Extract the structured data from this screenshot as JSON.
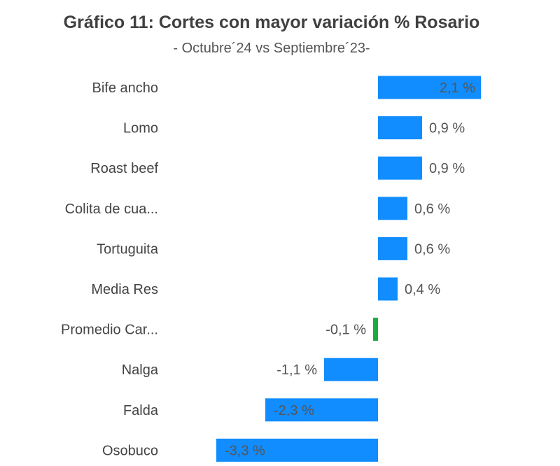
{
  "chart_data": {
    "type": "bar",
    "orientation": "horizontal",
    "title": "Gráfico 11: Cortes con mayor variación % Rosario",
    "subtitle": "- Octubre´24 vs Septiembre´23-",
    "categories": [
      "Bife ancho",
      "Lomo",
      "Roast beef",
      "Colita de cua...",
      "Tortuguita",
      "Media Res",
      "Promedio Car...",
      "Nalga",
      "Falda",
      "Osobuco"
    ],
    "values": [
      2.1,
      0.9,
      0.9,
      0.6,
      0.6,
      0.4,
      -0.1,
      -1.1,
      -2.3,
      -3.3
    ],
    "value_labels": [
      "2,1 %",
      "0,9 %",
      "0,9 %",
      "0,6 %",
      "0,6 %",
      "0,4 %",
      "-0,1 %",
      "-1,1 %",
      "-2,3 %",
      "-3,3 %"
    ],
    "colors": [
      "#118dff",
      "#118dff",
      "#118dff",
      "#118dff",
      "#118dff",
      "#118dff",
      "#1aab40",
      "#118dff",
      "#118dff",
      "#118dff"
    ],
    "xlabel": "",
    "ylabel": "",
    "xlim": [
      -3.3,
      2.1
    ],
    "grid": false
  }
}
